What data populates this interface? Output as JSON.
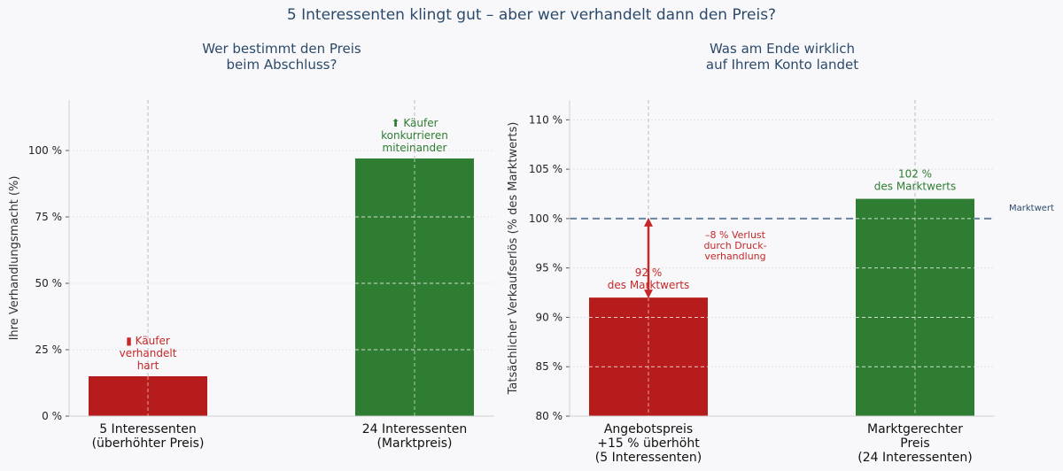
{
  "title": "5 Interessenten klingt gut – aber wer verhandelt dann den Preis?",
  "chart_data": [
    {
      "type": "bar",
      "title": "Wer bestimmt den Preis\nbeim Abschluss?",
      "ylabel": "Ihre Verhandlungsmacht (%)",
      "ylim": [
        0,
        119
      ],
      "yticks": [
        0,
        25,
        50,
        75,
        100
      ],
      "ytick_labels": [
        "0 %",
        "25 %",
        "50 %",
        "75 %",
        "100 %"
      ],
      "categories": [
        "5 Interessenten\n(überhöhter Preis)",
        "24 Interessenten\n(Marktpreis)"
      ],
      "values": [
        15,
        97
      ],
      "colors": [
        "#b71c1c",
        "#2e7d32"
      ],
      "annotations": [
        {
          "text": "▮ Käufer\nverhandelt\nhart",
          "color": "#c62828"
        },
        {
          "text": "⬆ Käufer\nkonkurrieren\nmiteinander",
          "color": "#2e7d32"
        }
      ],
      "grid": true
    },
    {
      "type": "bar",
      "title": "Was am Ende wirklich\nauf Ihrem Konto landet",
      "ylabel": "Tatsächlicher Verkaufserlös (% des Marktwerts)",
      "ylim": [
        80,
        112
      ],
      "yticks": [
        80,
        85,
        90,
        95,
        100,
        105,
        110
      ],
      "ytick_labels": [
        "80 %",
        "85 %",
        "90 %",
        "95 %",
        "100 %",
        "105 %",
        "110 %"
      ],
      "categories": [
        "Angebotspreis\n+15 % überhöht\n(5 Interessenten)",
        "Marktgerechter\nPreis\n(24 Interessenten)"
      ],
      "values": [
        92,
        102
      ],
      "colors": [
        "#b71c1c",
        "#2e7d32"
      ],
      "value_labels": [
        "92 %\ndes Marktwerts",
        "102 %\ndes Marktwerts"
      ],
      "reference_line": {
        "value": 100,
        "label": "Marktwert",
        "color": "#6b84a0"
      },
      "arrow_annotation": {
        "text": "–8 % Verlust\ndurch Druck-\nverhandlung",
        "color": "#c62828",
        "from": 100,
        "to": 92
      },
      "grid": true
    }
  ]
}
